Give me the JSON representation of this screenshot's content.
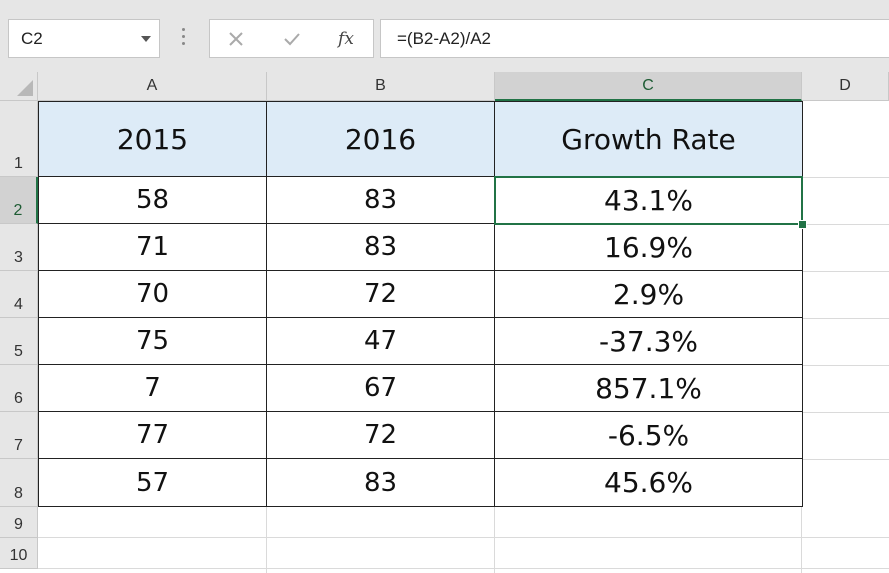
{
  "name_box": {
    "value": "C2"
  },
  "formula_bar": {
    "formula": "=(B2-A2)/A2",
    "cancel_icon": "close-icon",
    "enter_icon": "check-icon",
    "fx_label": "fx"
  },
  "columns": [
    "A",
    "B",
    "C",
    "D"
  ],
  "rows": [
    "1",
    "2",
    "3",
    "4",
    "5",
    "6",
    "7",
    "8",
    "9",
    "10"
  ],
  "table": {
    "headers": [
      "2015",
      "2016",
      "Growth Rate"
    ],
    "rows": [
      [
        "58",
        "83",
        "43.1%"
      ],
      [
        "71",
        "83",
        "16.9%"
      ],
      [
        "70",
        "72",
        "2.9%"
      ],
      [
        "75",
        "47",
        "-37.3%"
      ],
      [
        "7",
        "67",
        "857.1%"
      ],
      [
        "77",
        "72",
        "-6.5%"
      ],
      [
        "57",
        "83",
        "45.6%"
      ]
    ]
  },
  "selected_cell": "C2",
  "colors": {
    "header_fill": "#ddebf7",
    "selection": "#217346",
    "chrome": "#e6e6e6"
  }
}
